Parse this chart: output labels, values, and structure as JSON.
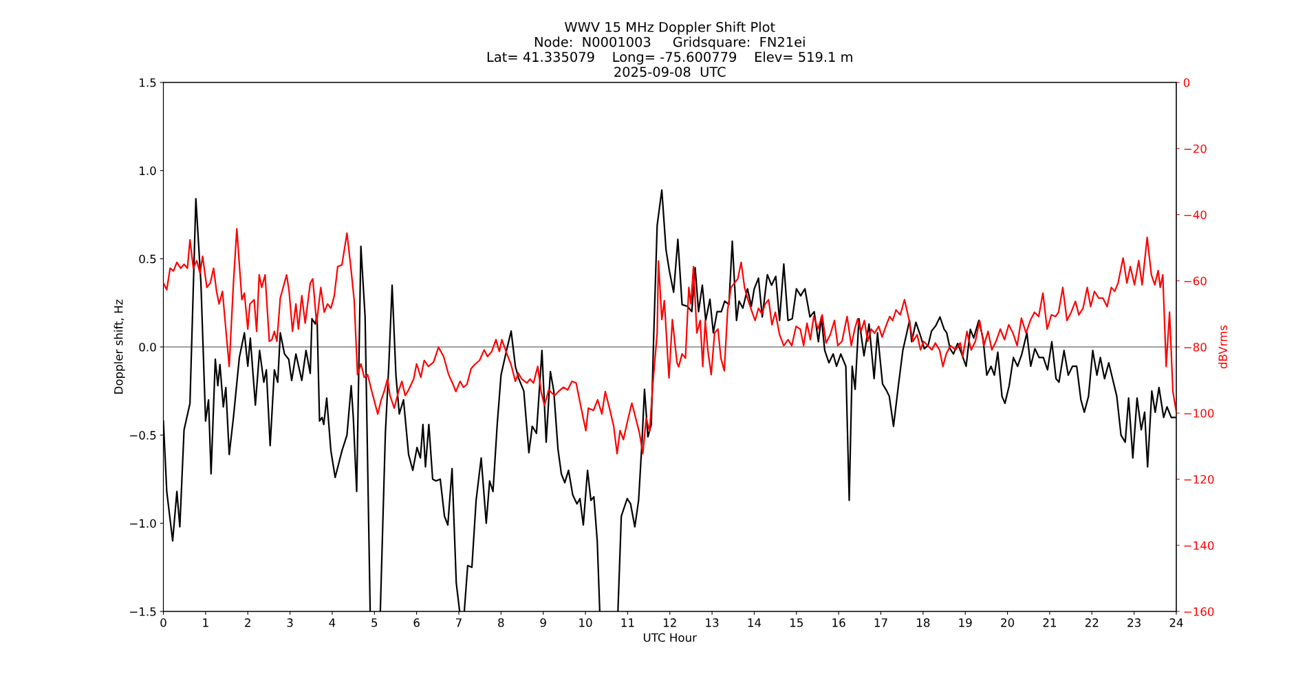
{
  "chart_data": {
    "type": "line",
    "title": "WWV 15 MHz Doppler Shift Plot\nNode:  N0001003     Gridsquare:  FN21ei\nLat= 41.335079    Long= -75.600779    Elev= 519.1 m\n2025-09-08  UTC",
    "xlabel": "UTC Hour",
    "ylabel": "Doppler shift, Hz",
    "y2label": "dBVrms",
    "xlim": [
      0,
      24
    ],
    "xticks": [
      0,
      1,
      2,
      3,
      4,
      5,
      6,
      7,
      8,
      9,
      10,
      11,
      12,
      13,
      14,
      15,
      16,
      17,
      18,
      19,
      20,
      21,
      22,
      23,
      24
    ],
    "ylim": [
      -1.5,
      1.5
    ],
    "yticks": [
      {
        "value": -1.5,
        "label": "−1.5"
      },
      {
        "value": -1.0,
        "label": "−1.0"
      },
      {
        "value": -0.5,
        "label": "−0.5"
      },
      {
        "value": 0.0,
        "label": "0.0"
      },
      {
        "value": 0.5,
        "label": "0.5"
      },
      {
        "value": 1.0,
        "label": "1.0"
      },
      {
        "value": 1.5,
        "label": "1.5"
      }
    ],
    "y2lim": [
      -160,
      0
    ],
    "y2ticks": [
      {
        "value": -160,
        "label": "−160"
      },
      {
        "value": -140,
        "label": "−140"
      },
      {
        "value": -120,
        "label": "−120"
      },
      {
        "value": -100,
        "label": "−100"
      },
      {
        "value": -80,
        "label": "−80"
      },
      {
        "value": -60,
        "label": "−60"
      },
      {
        "value": -40,
        "label": "−40"
      },
      {
        "value": -20,
        "label": "−20"
      },
      0
    ],
    "grid": false,
    "marker": "none",
    "line_style": "solid",
    "ref_lines": [
      {
        "axis": "y",
        "value": 0,
        "color": "#808080"
      }
    ],
    "series": [
      {
        "color": "#000000",
        "x": [
          0,
          0.08,
          0.22,
          0.32,
          0.39,
          0.49,
          0.63,
          0.77,
          0.89,
          1.0,
          1.07,
          1.13,
          1.23,
          1.29,
          1.34,
          1.42,
          1.48,
          1.56,
          1.66,
          1.8,
          1.92,
          2.0,
          2.06,
          2.18,
          2.28,
          2.38,
          2.44,
          2.53,
          2.63,
          2.71,
          2.77,
          2.87,
          2.97,
          3.04,
          3.14,
          3.28,
          3.38,
          3.48,
          3.52,
          3.6,
          3.64,
          3.7,
          3.76,
          3.8,
          3.87,
          3.97,
          4.07,
          4.23,
          4.35,
          4.45,
          4.5,
          4.58,
          4.68,
          4.78,
          4.9,
          5.0,
          5.14,
          5.26,
          5.34,
          5.42,
          5.51,
          5.59,
          5.69,
          5.81,
          5.91,
          6.01,
          6.09,
          6.15,
          6.21,
          6.29,
          6.38,
          6.46,
          6.56,
          6.66,
          6.74,
          6.84,
          6.94,
          7.02,
          7.08,
          7.13,
          7.21,
          7.31,
          7.41,
          7.53,
          7.65,
          7.73,
          7.81,
          7.91,
          8.0,
          8.14,
          8.24,
          8.34,
          8.42,
          8.54,
          8.66,
          8.74,
          8.84,
          8.97,
          9.07,
          9.17,
          9.25,
          9.35,
          9.43,
          9.51,
          9.6,
          9.7,
          9.8,
          9.87,
          9.95,
          10.05,
          10.13,
          10.2,
          10.28,
          10.34,
          10.55,
          10.77,
          10.85,
          10.99,
          11.07,
          11.17,
          11.26,
          11.34,
          11.4,
          11.48,
          11.56,
          11.62,
          11.7,
          11.81,
          11.91,
          11.99,
          12.09,
          12.19,
          12.29,
          12.42,
          12.52,
          12.6,
          12.68,
          12.77,
          12.85,
          12.95,
          13.03,
          13.12,
          13.22,
          13.3,
          13.4,
          13.48,
          13.58,
          13.64,
          13.73,
          13.84,
          13.93,
          14.0,
          14.1,
          14.19,
          14.31,
          14.41,
          14.51,
          14.6,
          14.7,
          14.8,
          14.9,
          15.0,
          15.1,
          15.2,
          15.32,
          15.42,
          15.52,
          15.59,
          15.67,
          15.77,
          15.87,
          15.95,
          16.05,
          16.17,
          16.25,
          16.32,
          16.39,
          16.48,
          16.6,
          16.72,
          16.84,
          16.92,
          17.04,
          17.14,
          17.2,
          17.3,
          17.42,
          17.52,
          17.68,
          17.73,
          17.83,
          17.93,
          18.03,
          18.12,
          18.2,
          18.3,
          18.4,
          18.5,
          18.56,
          18.64,
          18.72,
          18.82,
          18.9,
          19.02,
          19.12,
          19.2,
          19.32,
          19.42,
          19.51,
          19.61,
          19.69,
          19.77,
          19.87,
          19.94,
          20.04,
          20.14,
          20.24,
          20.34,
          20.46,
          20.55,
          20.65,
          20.75,
          20.85,
          20.95,
          21.05,
          21.15,
          21.22,
          21.34,
          21.44,
          21.54,
          21.64,
          21.74,
          21.82,
          21.92,
          22.02,
          22.12,
          22.2,
          22.3,
          22.4,
          22.49,
          22.59,
          22.69,
          22.79,
          22.87,
          22.97,
          23.07,
          23.17,
          23.25,
          23.32,
          23.42,
          23.5,
          23.59,
          23.7,
          23.78,
          23.88,
          24
        ],
        "values": [
          -0.42,
          -0.82,
          -1.1,
          -0.82,
          -1.02,
          -0.47,
          -0.32,
          0.84,
          0.36,
          -0.42,
          -0.3,
          -0.72,
          -0.07,
          -0.22,
          -0.1,
          -0.34,
          -0.23,
          -0.61,
          -0.4,
          -0.06,
          0.08,
          -0.11,
          0.05,
          -0.33,
          -0.02,
          -0.2,
          -0.13,
          -0.56,
          -0.13,
          -0.2,
          0.08,
          -0.04,
          -0.07,
          -0.19,
          -0.04,
          -0.19,
          -0.02,
          -0.15,
          0.16,
          0.13,
          0.18,
          -0.42,
          -0.4,
          -0.44,
          -0.29,
          -0.59,
          -0.74,
          -0.59,
          -0.5,
          -0.22,
          -0.4,
          -0.82,
          0.57,
          0.17,
          -1.5,
          null,
          -1.5,
          -0.49,
          -0.11,
          0.35,
          -0.16,
          -0.38,
          -0.3,
          -0.61,
          -0.7,
          -0.57,
          -0.63,
          -0.44,
          -0.68,
          -0.44,
          -0.75,
          -0.76,
          -0.75,
          -0.96,
          -1.01,
          -0.69,
          -1.34,
          -1.5,
          null,
          -1.5,
          -1.24,
          -1.25,
          -0.87,
          -0.63,
          -1.0,
          -0.76,
          -0.82,
          -0.44,
          -0.16,
          -0.01,
          0.09,
          -0.11,
          -0.18,
          -0.25,
          -0.6,
          -0.45,
          -0.49,
          -0.02,
          -0.54,
          -0.14,
          -0.25,
          -0.58,
          -0.72,
          -0.77,
          -0.7,
          -0.84,
          -0.89,
          -0.86,
          -1.01,
          -0.7,
          -0.87,
          -0.85,
          -1.1,
          -1.5,
          null,
          -1.5,
          -0.96,
          -0.86,
          -0.89,
          -1.02,
          -0.87,
          -0.54,
          -0.24,
          -0.51,
          -0.44,
          0.08,
          0.69,
          0.89,
          0.55,
          0.43,
          0.31,
          0.61,
          0.24,
          0.23,
          0.2,
          0.45,
          0.2,
          0.35,
          0.15,
          0.27,
          0.08,
          0.2,
          0.2,
          0.26,
          0.24,
          0.6,
          0.15,
          0.26,
          0.22,
          0.33,
          0.23,
          0.33,
          0.39,
          0.17,
          0.41,
          0.35,
          0.4,
          0.15,
          0.47,
          0.15,
          0.16,
          0.33,
          0.29,
          0.33,
          0.17,
          0.2,
          0.03,
          0.17,
          -0.02,
          -0.09,
          -0.04,
          -0.11,
          -0.04,
          -0.11,
          -0.87,
          -0.11,
          -0.24,
          0.16,
          -0.05,
          0.13,
          -0.18,
          0.08,
          -0.21,
          -0.25,
          -0.28,
          -0.45,
          -0.21,
          -0.02,
          0.15,
          0.03,
          0.14,
          0.07,
          -0.01,
          0.01,
          0.09,
          0.12,
          0.17,
          0.1,
          0.08,
          -0.01,
          -0.04,
          0.02,
          -0.03,
          -0.11,
          0.1,
          0.05,
          0.15,
          0.05,
          -0.16,
          -0.11,
          -0.16,
          -0.03,
          -0.28,
          -0.32,
          -0.22,
          -0.06,
          -0.11,
          -0.04,
          0.08,
          -0.11,
          -0.01,
          -0.06,
          -0.06,
          -0.13,
          0.03,
          -0.18,
          -0.2,
          -0.02,
          -0.16,
          -0.11,
          -0.11,
          -0.3,
          -0.37,
          -0.28,
          -0.02,
          -0.16,
          -0.06,
          -0.18,
          -0.09,
          -0.18,
          -0.28,
          -0.5,
          -0.54,
          -0.29,
          -0.63,
          -0.29,
          -0.47,
          -0.37,
          -0.68,
          -0.25,
          -0.37,
          -0.23,
          -0.4,
          -0.34,
          -0.4,
          -0.4
        ]
      },
      {
        "color": "#ff0000",
        "axis": "y2",
        "x": [
          0,
          0.08,
          0.16,
          0.24,
          0.32,
          0.41,
          0.49,
          0.57,
          0.63,
          0.71,
          0.79,
          0.87,
          0.93,
          1.03,
          1.11,
          1.19,
          1.26,
          1.32,
          1.4,
          1.48,
          1.56,
          1.66,
          1.74,
          1.86,
          1.92,
          2.0,
          2.05,
          2.15,
          2.21,
          2.27,
          2.33,
          2.41,
          2.51,
          2.57,
          2.63,
          2.69,
          2.77,
          2.92,
          2.98,
          3.06,
          3.14,
          3.2,
          3.28,
          3.36,
          3.48,
          3.54,
          3.63,
          3.73,
          3.81,
          3.89,
          3.97,
          4.05,
          4.13,
          4.23,
          4.35,
          4.44,
          4.52,
          4.6,
          4.68,
          4.76,
          4.84,
          4.94,
          5.08,
          5.16,
          5.23,
          5.31,
          5.37,
          5.47,
          5.57,
          5.65,
          5.73,
          5.81,
          5.93,
          6.0,
          6.1,
          6.18,
          6.28,
          6.4,
          6.52,
          6.64,
          6.76,
          6.85,
          6.93,
          7.03,
          7.11,
          7.19,
          7.29,
          7.37,
          7.49,
          7.6,
          7.68,
          7.78,
          7.88,
          7.96,
          8.02,
          8.14,
          8.24,
          8.34,
          8.41,
          8.49,
          8.61,
          8.69,
          8.77,
          8.87,
          8.95,
          9.03,
          9.13,
          9.27,
          9.36,
          9.48,
          9.58,
          9.68,
          9.78,
          9.86,
          9.96,
          10.01,
          10.07,
          10.19,
          10.29,
          10.39,
          10.47,
          10.57,
          10.67,
          10.75,
          10.82,
          10.9,
          11.0,
          11.1,
          11.18,
          11.28,
          11.36,
          11.44,
          11.52,
          11.6,
          11.7,
          11.73,
          11.81,
          11.87,
          11.98,
          12.06,
          12.17,
          12.21,
          12.29,
          12.37,
          12.45,
          12.5,
          12.56,
          12.64,
          12.72,
          12.78,
          12.84,
          12.9,
          12.98,
          13.06,
          13.14,
          13.21,
          13.29,
          13.37,
          13.45,
          13.53,
          13.61,
          13.69,
          13.77,
          13.85,
          13.95,
          14.02,
          14.1,
          14.18,
          14.26,
          14.34,
          14.42,
          14.5,
          14.6,
          14.7,
          14.8,
          14.89,
          14.99,
          15.09,
          15.17,
          15.25,
          15.33,
          15.41,
          15.51,
          15.61,
          15.7,
          15.8,
          15.9,
          15.98,
          16.08,
          16.2,
          16.3,
          16.38,
          16.45,
          16.53,
          16.61,
          16.69,
          16.77,
          16.85,
          16.95,
          17.03,
          17.13,
          17.21,
          17.28,
          17.36,
          17.46,
          17.56,
          17.66,
          17.76,
          17.86,
          17.94,
          18.01,
          18.11,
          18.21,
          18.29,
          18.39,
          18.47,
          18.55,
          18.65,
          18.77,
          18.88,
          18.94,
          19.04,
          19.14,
          19.24,
          19.34,
          19.44,
          19.54,
          19.63,
          19.73,
          19.83,
          19.93,
          20.03,
          20.13,
          20.23,
          20.33,
          20.44,
          20.54,
          20.64,
          20.74,
          20.84,
          20.94,
          21.04,
          21.14,
          21.21,
          21.31,
          21.41,
          21.51,
          21.61,
          21.69,
          21.79,
          21.89,
          21.97,
          22.06,
          22.16,
          22.26,
          22.36,
          22.46,
          22.54,
          22.62,
          22.74,
          22.83,
          22.91,
          23.01,
          23.11,
          23.19,
          23.31,
          23.41,
          23.49,
          23.57,
          23.62,
          23.68,
          23.76,
          23.84,
          23.92,
          24
        ],
        "values": [
          -60.7,
          -62.7,
          -56.2,
          -57,
          -54.4,
          -56.2,
          -55,
          -56.2,
          -47.6,
          -56.2,
          -53.9,
          -57.7,
          -52.6,
          -62,
          -60.7,
          -56.2,
          -63.2,
          -67,
          -63.2,
          -74.6,
          -85.9,
          -60.7,
          -44.3,
          -65.7,
          -63.7,
          -74.6,
          -67,
          -65.7,
          -75.3,
          -58.2,
          -62,
          -58.2,
          -78.3,
          -77.8,
          -75.3,
          -78.3,
          -65.2,
          -58.2,
          -63.2,
          -75.3,
          -67,
          -74.6,
          -64.5,
          -72.8,
          -60.7,
          -59.4,
          -72.8,
          -62,
          -69.5,
          -67,
          -68.3,
          -64.5,
          -55.7,
          -55.2,
          -45.6,
          -55.7,
          -65.7,
          -88.4,
          -85.1,
          -89.2,
          -88.4,
          -93.5,
          -100.3,
          -96,
          -93.5,
          -89.7,
          -94.7,
          -98.5,
          -93.5,
          -90.4,
          -94.7,
          -93,
          -89.7,
          -85.1,
          -89.2,
          -84.1,
          -85.9,
          -84.6,
          -80.1,
          -82.9,
          -88.4,
          -90.9,
          -93.5,
          -90.4,
          -92.2,
          -91.4,
          -86.6,
          -85.4,
          -84.1,
          -80.9,
          -82.9,
          -81.4,
          -77.8,
          -81.4,
          -77.8,
          -82.1,
          -85.4,
          -90.4,
          -87.9,
          -89.7,
          -90.9,
          -89.7,
          -90.9,
          -85.9,
          -93.5,
          -97.7,
          -93,
          -94.7,
          -93.5,
          -92.2,
          -93,
          -90.4,
          -90.9,
          -96,
          -102.3,
          -105.3,
          -98.5,
          -99.2,
          -96,
          -100.3,
          -93.5,
          -98.5,
          -104,
          -112.3,
          -105.3,
          -108,
          -102.3,
          -97,
          -101,
          -106,
          -112.3,
          -101.5,
          -105.5,
          -90.9,
          -75.8,
          -54,
          -71.7,
          -66,
          -89.4,
          -71.7,
          -84.8,
          -86,
          -82.1,
          -83.4,
          -62,
          -67,
          -55.7,
          -75.8,
          -72,
          -85.9,
          -72,
          -81,
          -88.4,
          -75.8,
          -74.6,
          -83.4,
          -87.2,
          -68.8,
          -62,
          -60.7,
          -59.4,
          -54.4,
          -62,
          -65.7,
          -69.5,
          -72,
          -68.3,
          -70,
          -67,
          -65.7,
          -73.3,
          -69.5,
          -76.3,
          -79.6,
          -77.8,
          -79.6,
          -73.8,
          -74.6,
          -79.6,
          -72.8,
          -77.8,
          -70.8,
          -74.6,
          -70.3,
          -78.8,
          -76.3,
          -72,
          -79.6,
          -78.3,
          -70.8,
          -79.6,
          -74.6,
          -71.5,
          -75.3,
          -72,
          -78.3,
          -74.6,
          -75.8,
          -73.8,
          -77,
          -73.3,
          -70.8,
          -72,
          -68.8,
          -70.3,
          -65.7,
          -71.3,
          -78.3,
          -76.3,
          -80.9,
          -78.3,
          -79.6,
          -80.9,
          -78.8,
          -80.9,
          -85.9,
          -82.1,
          -79.6,
          -80.9,
          -78.8,
          -82.9,
          -75.3,
          -80.9,
          -78.3,
          -72,
          -79.6,
          -75.3,
          -80.9,
          -78.3,
          -74.6,
          -77.8,
          -73.3,
          -75.8,
          -79.6,
          -71.3,
          -75.8,
          -72,
          -69.5,
          -70.8,
          -63.7,
          -74.6,
          -70.3,
          -70.8,
          -69.5,
          -62,
          -72,
          -69.5,
          -66.2,
          -70.3,
          -68.3,
          -62,
          -67.8,
          -63.2,
          -65.2,
          -65.2,
          -67.8,
          -62,
          -63.2,
          -60.7,
          -53.1,
          -60.7,
          -55.7,
          -61.2,
          -53.9,
          -61.2,
          -46.9,
          -58.2,
          -61.2,
          -56.9,
          -62,
          -58.2,
          -85.9,
          -69.5,
          -93.5,
          -99.7
        ]
      }
    ]
  }
}
